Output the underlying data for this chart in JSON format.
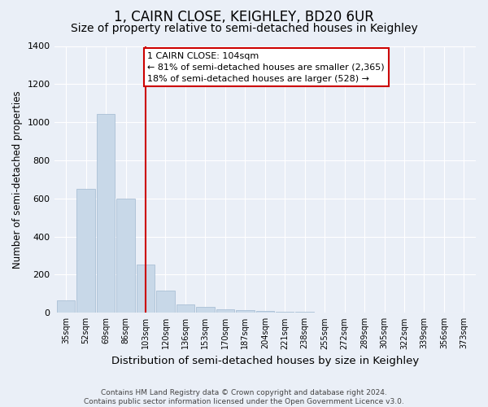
{
  "title": "1, CAIRN CLOSE, KEIGHLEY, BD20 6UR",
  "subtitle": "Size of property relative to semi-detached houses in Keighley",
  "xlabel": "Distribution of semi-detached houses by size in Keighley",
  "ylabel": "Number of semi-detached properties",
  "bins": [
    "35sqm",
    "52sqm",
    "69sqm",
    "86sqm",
    "103sqm",
    "120sqm",
    "136sqm",
    "153sqm",
    "170sqm",
    "187sqm",
    "204sqm",
    "221sqm",
    "238sqm",
    "255sqm",
    "272sqm",
    "289sqm",
    "305sqm",
    "322sqm",
    "339sqm",
    "356sqm",
    "373sqm"
  ],
  "values": [
    65,
    650,
    1045,
    600,
    255,
    115,
    45,
    30,
    20,
    15,
    10,
    5,
    5,
    3,
    2,
    2,
    1,
    1,
    1,
    0,
    0
  ],
  "bar_color": "#c8d8e8",
  "bar_edge_color": "#a0b8d0",
  "property_line_x": 4,
  "annotation_text": "1 CAIRN CLOSE: 104sqm\n← 81% of semi-detached houses are smaller (2,365)\n18% of semi-detached houses are larger (528) →",
  "annotation_box_color": "#ffffff",
  "annotation_box_edge": "#cc0000",
  "red_line_color": "#cc0000",
  "ylim": [
    0,
    1400
  ],
  "yticks": [
    0,
    200,
    400,
    600,
    800,
    1000,
    1200,
    1400
  ],
  "background_color": "#eaeff7",
  "plot_background": "#eaeff7",
  "footer_text": "Contains HM Land Registry data © Crown copyright and database right 2024.\nContains public sector information licensed under the Open Government Licence v3.0.",
  "title_fontsize": 12,
  "subtitle_fontsize": 10,
  "xlabel_fontsize": 9.5,
  "ylabel_fontsize": 8.5,
  "annotation_fontsize": 8,
  "footer_fontsize": 6.5
}
